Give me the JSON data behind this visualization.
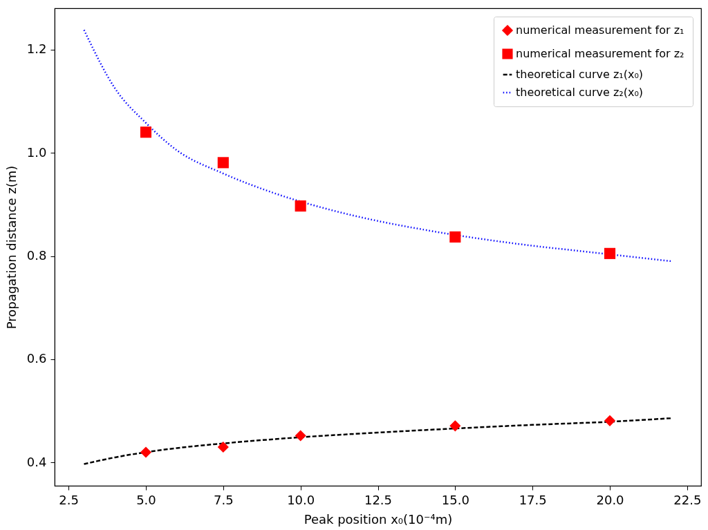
{
  "chart_data": {
    "type": "scatter",
    "xlabel": "Peak position x₀(10⁻⁴m)",
    "ylabel": "Propagation distance z(m)",
    "xlim": [
      2.05,
      22.95
    ],
    "xticks": [
      {
        "value": 2.5,
        "label": "2.5"
      },
      {
        "value": 5,
        "label": "5.0"
      },
      {
        "value": 7.5,
        "label": "7.5"
      },
      {
        "value": 10,
        "label": "10.0"
      },
      {
        "value": 12.5,
        "label": "12.5"
      },
      {
        "value": 15,
        "label": "15.0"
      },
      {
        "value": 17.5,
        "label": "17.5"
      },
      {
        "value": 20,
        "label": "20.0"
      },
      {
        "value": 22.5,
        "label": "22.5"
      }
    ],
    "ylim": [
      0.355,
      1.28
    ],
    "yticks": [
      0.4,
      0.6,
      0.8,
      {
        "value": 1,
        "label": "1.0"
      },
      1.2
    ],
    "legend": "top right",
    "grid": false,
    "series": [
      {
        "name": "numerical measurement for z₁",
        "type": "scatter",
        "marker": "diamond",
        "color": "#ff0000",
        "x": [
          5,
          7.5,
          10,
          15,
          20
        ],
        "values": [
          0.42,
          0.43,
          0.452,
          0.471,
          0.481
        ]
      },
      {
        "name": "numerical measurement for z₂",
        "type": "scatter",
        "marker": "square",
        "color": "#ff0000",
        "x": [
          5,
          7.5,
          10,
          15,
          20
        ],
        "values": [
          1.04,
          0.981,
          0.897,
          0.837,
          0.805
        ]
      },
      {
        "name": "theoretical curve z₁(x₀)",
        "type": "line",
        "line_style": "dashed",
        "color": "#000000",
        "x": [
          3,
          4,
          5,
          6,
          7.5,
          10,
          12.5,
          15,
          17.5,
          20,
          22
        ],
        "values": [
          0.397,
          0.41,
          0.42,
          0.428,
          0.437,
          0.449,
          0.458,
          0.466,
          0.473,
          0.479,
          0.486
        ]
      },
      {
        "name": "theoretical curve z₂(x₀)",
        "type": "line",
        "line_style": "dotted",
        "color": "#0000ff",
        "x": [
          3,
          4,
          5,
          6,
          7.5,
          9,
          11,
          12.5,
          14,
          17.5,
          19,
          22
        ],
        "values": [
          1.238,
          1.125,
          1.058,
          1.005,
          0.96,
          0.925,
          0.889,
          0.868,
          0.851,
          0.82,
          0.81,
          0.79
        ]
      }
    ]
  }
}
